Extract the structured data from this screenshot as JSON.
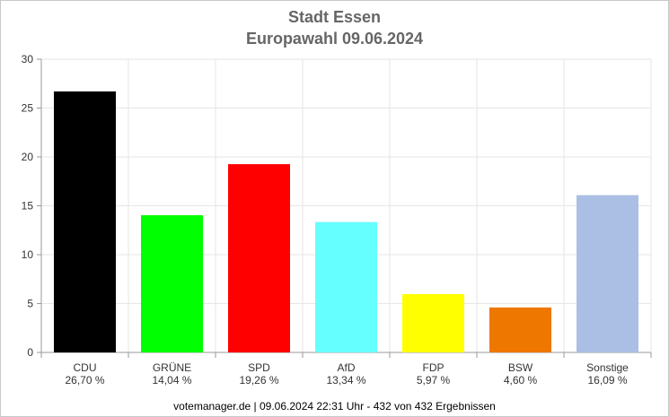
{
  "chart_data": {
    "type": "bar",
    "title": "Stadt Essen",
    "subtitle": "Europawahl 09.06.2024",
    "categories": [
      "CDU",
      "GRÜNE",
      "SPD",
      "AfD",
      "FDP",
      "BSW",
      "Sonstige"
    ],
    "values": [
      26.7,
      14.04,
      19.26,
      13.34,
      5.97,
      4.6,
      16.09
    ],
    "value_labels": [
      "26,70 %",
      "14,04 %",
      "19,26 %",
      "13,34 %",
      "5,97 %",
      "4,60 %",
      "16,09 %"
    ],
    "colors": [
      "#000000",
      "#00ff00",
      "#ff0000",
      "#66ffff",
      "#ffff00",
      "#ee7700",
      "#aabfe3"
    ],
    "ylim": [
      0,
      30
    ],
    "yticks": [
      0,
      5,
      10,
      15,
      20,
      25,
      30
    ],
    "xlabel": "",
    "ylabel": "",
    "grid": true,
    "legend": false
  },
  "footer": "votemanager.de | 09.06.2024 22:31 Uhr - 432 von 432 Ergebnissen"
}
